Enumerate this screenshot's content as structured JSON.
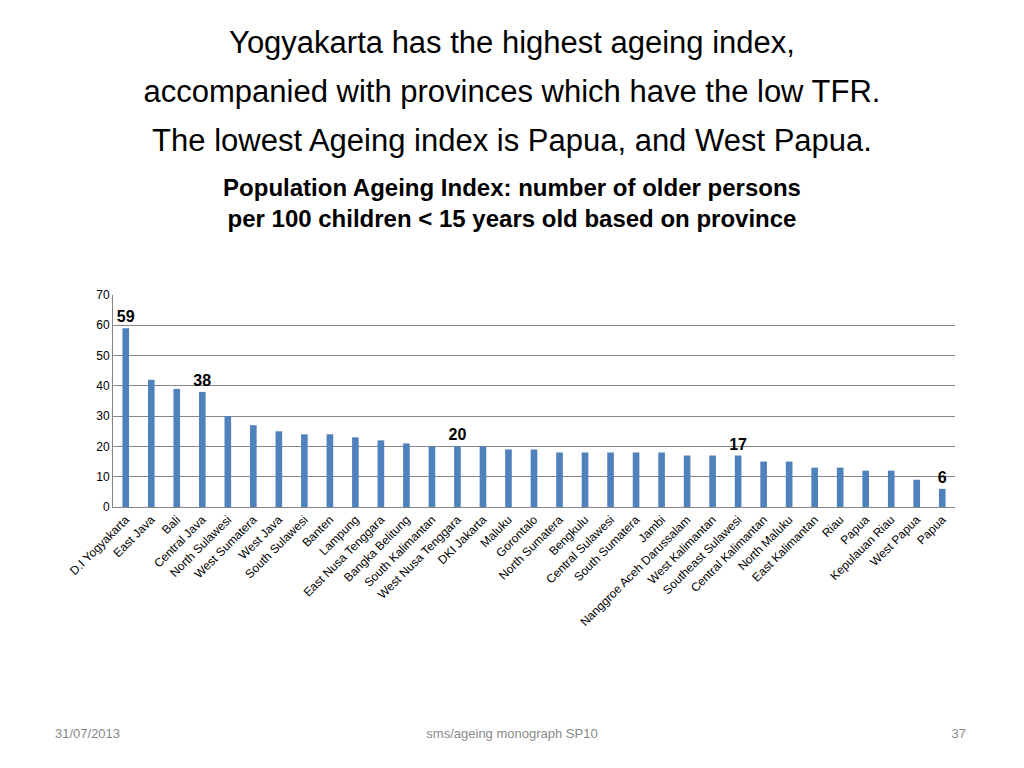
{
  "slide": {
    "heading": [
      "Yogyakarta has the highest ageing index,",
      "accompanied with provinces which have the low TFR.",
      "The lowest Ageing index is Papua, and West Papua."
    ],
    "footer": {
      "date": "31/07/2013",
      "source": "sms/ageing monograph SP10",
      "page": "37"
    }
  },
  "chart_data": {
    "type": "bar",
    "title": "Population Ageing Index: number of older persons\nper 100 children < 15 years old based on province",
    "categories": [
      "D.I Yogyakarta",
      "East Java",
      "Bali",
      "Central Java",
      "North Sulawesi",
      "West Sumatera",
      "West Java",
      "South Sulawesi",
      "Banten",
      "Lampung",
      "East Nusa Tenggara",
      "Bangka Belitung",
      "South Kalimantan",
      "West Nusa Tenggara",
      "DKI Jakarta",
      "Maluku",
      "Gorontalo",
      "North Sumatera",
      "Bengkulu",
      "Central Sulawesi",
      "South Sumatera",
      "Jambi",
      "Nanggroe Aceh Darussalam",
      "West Kalimantan",
      "Southeast Sulawesi",
      "Central Kalimantan",
      "North Maluku",
      "East Kalimantan",
      "Riau",
      "Papua",
      "Kepulauan Riau",
      "West Papua",
      "Papua"
    ],
    "values": [
      59,
      42,
      39,
      38,
      30,
      27,
      25,
      24,
      24,
      23,
      22,
      21,
      20,
      20,
      20,
      19,
      19,
      18,
      18,
      18,
      18,
      18,
      17,
      17,
      17,
      15,
      15,
      13,
      13,
      12,
      12,
      9,
      6
    ],
    "value_labels": [
      "59",
      null,
      null,
      "38",
      null,
      null,
      null,
      null,
      null,
      null,
      null,
      null,
      null,
      "20",
      null,
      null,
      null,
      null,
      null,
      null,
      null,
      null,
      null,
      null,
      "17",
      null,
      null,
      null,
      null,
      null,
      null,
      null,
      "6"
    ],
    "data_labels": true,
    "color": "#4f81bd",
    "ylim": [
      0,
      70
    ],
    "yticks": [
      0,
      10,
      20,
      30,
      40,
      50,
      60,
      70
    ],
    "grid": true
  }
}
